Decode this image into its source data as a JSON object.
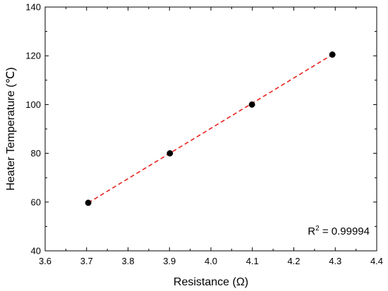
{
  "chart_data": {
    "type": "scatter",
    "xlabel": "Resistance (Ω)",
    "ylabel": "Heater Temperature (℃)",
    "xlim": [
      3.6,
      4.4
    ],
    "ylim": [
      40,
      140
    ],
    "x_ticks": [
      "3.6",
      "3.7",
      "3.8",
      "3.9",
      "4.0",
      "4.1",
      "4.2",
      "4.3",
      "4.4"
    ],
    "y_ticks": [
      "40",
      "60",
      "80",
      "100",
      "120",
      "140"
    ],
    "series": [
      {
        "x": [
          3.704,
          3.901,
          4.099,
          4.293
        ],
        "y": [
          59.7,
          80.0,
          100.0,
          120.5
        ],
        "marker_color": "#000000"
      }
    ],
    "fit_line": {
      "x": [
        3.704,
        4.293
      ],
      "y": [
        59.7,
        120.5
      ],
      "color": "#e8231e",
      "style": "dashed"
    },
    "grid": false,
    "annotation": {
      "base": "R",
      "superscript": "2",
      "text": " = 0.99994",
      "placement": "bottom-right"
    }
  }
}
